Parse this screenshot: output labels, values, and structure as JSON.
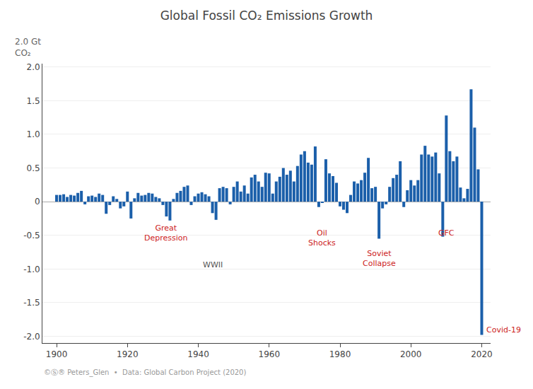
{
  "chart_data": {
    "type": "bar",
    "title": "Global Fossil CO₂ Emissions Growth",
    "ylabel": "2.0 Gt\nCO₂",
    "footer": "©Ⓢ® Peters_Glen  •  Data: Global Carbon Project (2020)",
    "color": "#1b5faa",
    "grid": true,
    "xlim": [
      1896,
      2022.5
    ],
    "xticks": [
      1900,
      1920,
      1940,
      1960,
      1980,
      2000,
      2020
    ],
    "ylim": [
      -2.1,
      2.05
    ],
    "yticks": [
      {
        "value": -2.0,
        "label": "-2.0"
      },
      -1.5,
      {
        "value": -1.0,
        "label": "-1.0"
      },
      -0.5,
      0,
      0.5,
      {
        "value": 1.0,
        "label": "1.0"
      },
      1.5,
      {
        "value": 2.0,
        "label": "2.0"
      }
    ],
    "annotations": [
      {
        "text": "Great\nDepression",
        "x": 1931,
        "y": -0.3,
        "color": "#cc2222"
      },
      {
        "text": "WWII",
        "x": 1944,
        "y": -0.85,
        "color": "#555555"
      },
      {
        "text": "Oil\nShocks",
        "x": 1975,
        "y": -0.38,
        "color": "#cc2222"
      },
      {
        "text": "Soviet\nCollapse",
        "x": 1991,
        "y": -0.68,
        "color": "#cc2222"
      },
      {
        "text": "GFC",
        "x": 2010,
        "y": -0.38,
        "color": "#cc2222"
      },
      {
        "text": "Covid-19",
        "x": 2021,
        "y": -1.82,
        "color": "#cc2222"
      }
    ],
    "x": [
      1900,
      1901,
      1902,
      1903,
      1904,
      1905,
      1906,
      1907,
      1908,
      1909,
      1910,
      1911,
      1912,
      1913,
      1914,
      1915,
      1916,
      1917,
      1918,
      1919,
      1920,
      1921,
      1922,
      1923,
      1924,
      1925,
      1926,
      1927,
      1928,
      1929,
      1930,
      1931,
      1932,
      1933,
      1934,
      1935,
      1936,
      1937,
      1938,
      1939,
      1940,
      1941,
      1942,
      1943,
      1944,
      1945,
      1946,
      1947,
      1948,
      1949,
      1950,
      1951,
      1952,
      1953,
      1954,
      1955,
      1956,
      1957,
      1958,
      1959,
      1960,
      1961,
      1962,
      1963,
      1964,
      1965,
      1966,
      1967,
      1968,
      1969,
      1970,
      1971,
      1972,
      1973,
      1974,
      1975,
      1976,
      1977,
      1978,
      1979,
      1980,
      1981,
      1982,
      1983,
      1984,
      1985,
      1986,
      1987,
      1988,
      1989,
      1990,
      1991,
      1992,
      1993,
      1994,
      1995,
      1996,
      1997,
      1998,
      1999,
      2000,
      2001,
      2002,
      2003,
      2004,
      2005,
      2006,
      2007,
      2008,
      2009,
      2010,
      2011,
      2012,
      2013,
      2014,
      2015,
      2016,
      2017,
      2018,
      2019,
      2020
    ],
    "values": [
      0.1,
      0.1,
      0.11,
      0.07,
      0.1,
      0.09,
      0.13,
      0.16,
      -0.04,
      0.08,
      0.09,
      0.07,
      0.12,
      0.1,
      -0.18,
      -0.05,
      0.08,
      0.04,
      -0.1,
      -0.07,
      0.15,
      -0.25,
      0.05,
      0.13,
      0.09,
      0.1,
      0.13,
      0.12,
      0.07,
      0.05,
      -0.05,
      -0.22,
      -0.28,
      0.04,
      0.13,
      0.16,
      0.22,
      0.24,
      -0.05,
      0.08,
      0.12,
      0.14,
      0.11,
      0.08,
      -0.17,
      -0.27,
      0.2,
      0.22,
      0.2,
      -0.04,
      0.22,
      0.3,
      0.15,
      0.24,
      0.12,
      0.36,
      0.4,
      0.3,
      0.22,
      0.43,
      0.42,
      0.12,
      0.3,
      0.37,
      0.5,
      0.4,
      0.46,
      0.3,
      0.53,
      0.7,
      0.75,
      0.58,
      0.55,
      0.82,
      -0.08,
      -0.01,
      0.63,
      0.42,
      0.38,
      0.28,
      -0.07,
      -0.12,
      -0.17,
      0.1,
      0.3,
      0.27,
      0.32,
      0.43,
      0.65,
      0.2,
      0.22,
      -0.55,
      -0.1,
      -0.04,
      0.22,
      0.35,
      0.4,
      0.6,
      -0.08,
      0.17,
      0.32,
      0.24,
      0.32,
      0.7,
      0.83,
      0.7,
      0.67,
      0.73,
      0.42,
      -0.52,
      1.28,
      0.75,
      0.6,
      0.67,
      0.21,
      0.05,
      0.19,
      1.67,
      1.1,
      0.48,
      -1.98
    ]
  }
}
